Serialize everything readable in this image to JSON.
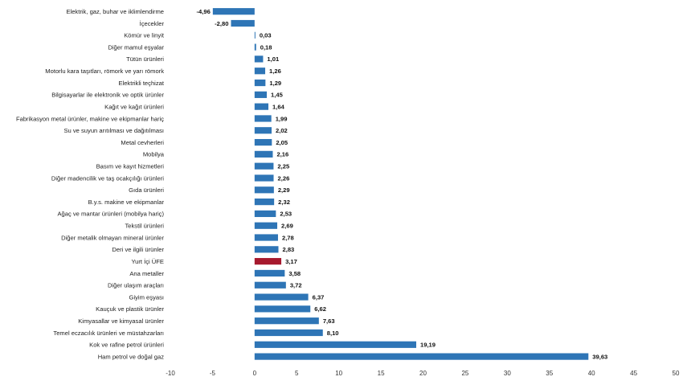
{
  "chart_data": {
    "type": "bar",
    "orientation": "horizontal",
    "title": "",
    "xlabel": "",
    "ylabel": "",
    "xlim": [
      -10,
      50
    ],
    "x_ticks": [
      -10,
      -5,
      0,
      5,
      10,
      15,
      20,
      25,
      30,
      35,
      40,
      45,
      50
    ],
    "grid": false,
    "legend": "none",
    "colors": {
      "default": "#2E75B6",
      "highlight": "#A6192E"
    },
    "highlight_category": "Yurt İçi ÜFE",
    "categories": [
      "Elektrik, gaz, buhar ve iklimlendirme",
      "İçecekler",
      "Kömür ve linyit",
      "Diğer mamul eşyalar",
      "Tütün ürünleri",
      "Motorlu kara taşıtları, römork ve yarı römork",
      "Elektrikli teçhizat",
      "Bilgisayarlar ile elektronik ve optik ürünler",
      "Kağıt ve kağıt ürünleri",
      "Fabrikasyon metal ürünler, makine ve ekipmanlar hariç",
      "Su ve suyun arıtılması ve dağıtılması",
      "Metal cevherleri",
      "Mobilya",
      "Basım ve kayıt hizmetleri",
      "Diğer madencilik ve taş ocakçılığı ürünleri",
      "Gıda ürünleri",
      "B.y.s. makine ve ekipmanlar",
      "Ağaç ve mantar ürünleri (mobilya hariç)",
      "Tekstil ürünleri",
      "Diğer metalik olmayan mineral ürünler",
      "Deri ve ilgili ürünler",
      "Yurt İçi ÜFE",
      "Ana metaller",
      "Diğer ulaşım araçları",
      "Giyim eşyası",
      "Kauçuk ve plastik ürünler",
      "Kimyasallar ve kimyasal ürünler",
      "Temel eczacılık ürünleri ve müstahzarları",
      "Kok ve rafine petrol ürünleri",
      "Ham petrol ve doğal gaz"
    ],
    "values": [
      -4.96,
      -2.8,
      0.03,
      0.18,
      1.01,
      1.26,
      1.29,
      1.45,
      1.64,
      1.99,
      2.02,
      2.05,
      2.16,
      2.25,
      2.26,
      2.29,
      2.32,
      2.53,
      2.69,
      2.78,
      2.83,
      3.17,
      3.58,
      3.72,
      6.37,
      6.62,
      7.63,
      8.1,
      19.19,
      39.63
    ],
    "value_labels": [
      "-4,96",
      "-2,80",
      "0,03",
      "0,18",
      "1,01",
      "1,26",
      "1,29",
      "1,45",
      "1,64",
      "1,99",
      "2,02",
      "2,05",
      "2,16",
      "2,25",
      "2,26",
      "2,29",
      "2,32",
      "2,53",
      "2,69",
      "2,78",
      "2,83",
      "3,17",
      "3,58",
      "3,72",
      "6,37",
      "6,62",
      "7,63",
      "8,10",
      "19,19",
      "39,63"
    ]
  }
}
